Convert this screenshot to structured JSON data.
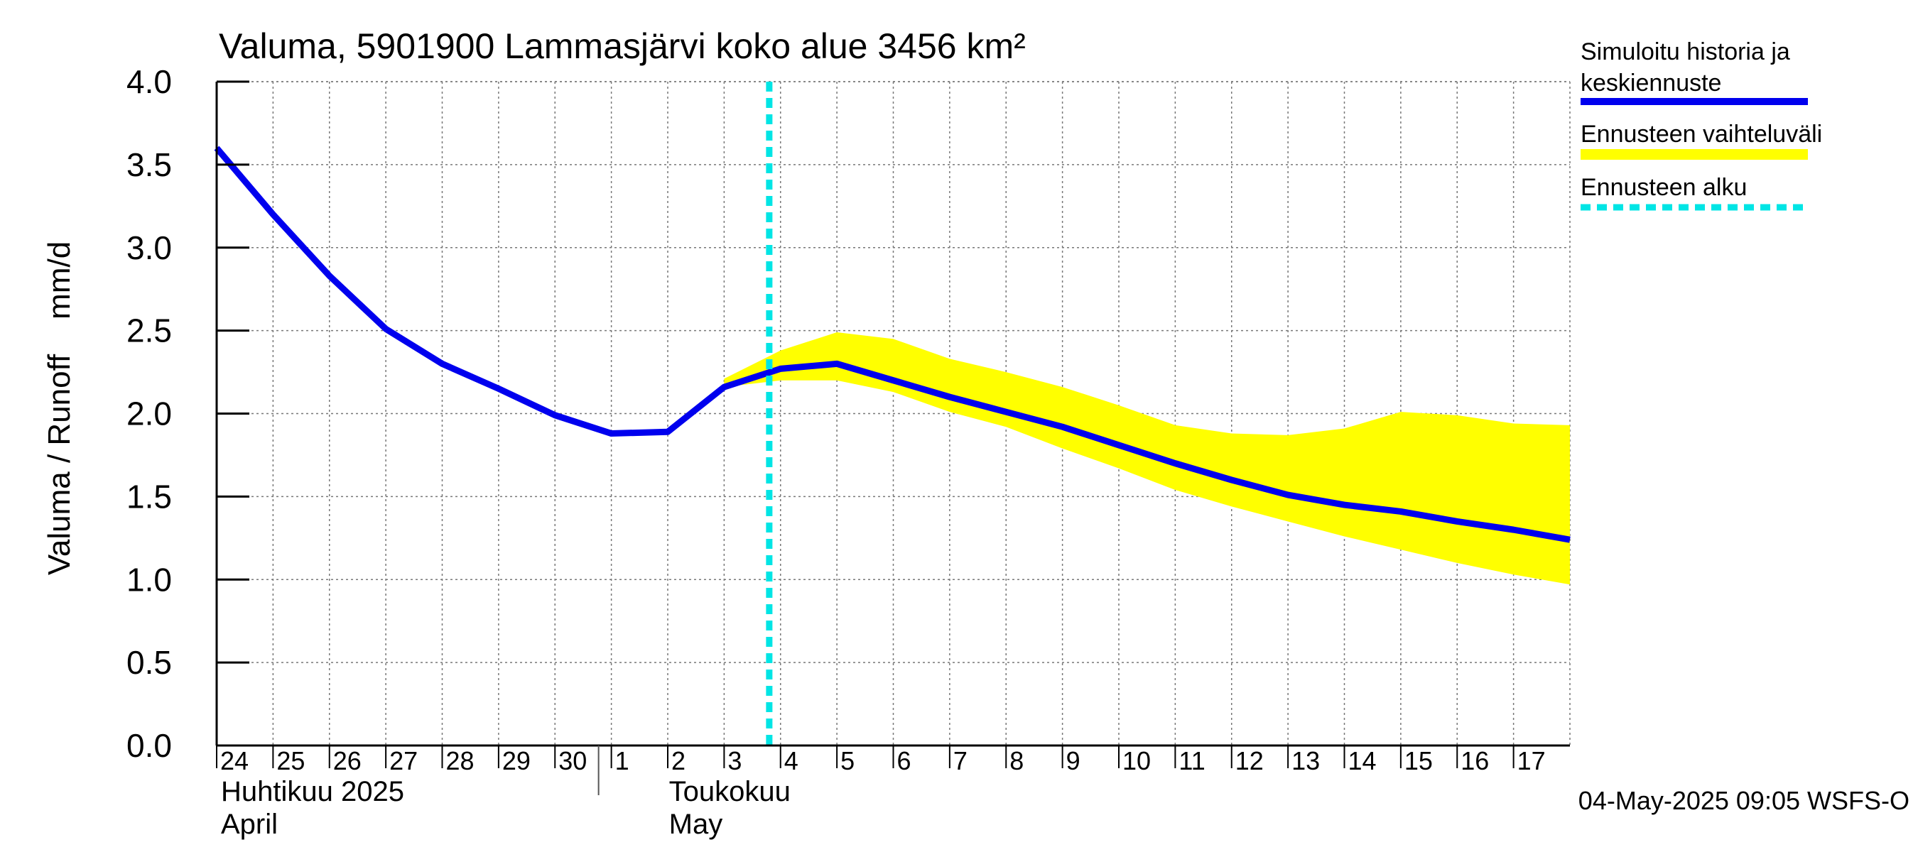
{
  "chart_data": {
    "type": "area",
    "title": "Valuma, 5901900 Lammasjärvi koko alue 3456 km²",
    "ylabel": "Valuma / Runoff    mm/d",
    "ylim": [
      0.0,
      4.0
    ],
    "y_ticks": [
      "0.0",
      "0.5",
      "1.0",
      "1.5",
      "2.0",
      "2.5",
      "3.0",
      "3.5",
      "4.0"
    ],
    "x_range": [
      "2025-04-24",
      "2025-05-18"
    ],
    "x_tick_labels": [
      {
        "date": "2025-04-24",
        "label": "24"
      },
      {
        "date": "2025-04-25",
        "label": "25"
      },
      {
        "date": "2025-04-26",
        "label": "26"
      },
      {
        "date": "2025-04-27",
        "label": "27"
      },
      {
        "date": "2025-04-28",
        "label": "28"
      },
      {
        "date": "2025-04-29",
        "label": "29"
      },
      {
        "date": "2025-04-30",
        "label": "30"
      },
      {
        "date": "2025-05-01",
        "label": "1"
      },
      {
        "date": "2025-05-02",
        "label": "2"
      },
      {
        "date": "2025-05-03",
        "label": "3"
      },
      {
        "date": "2025-05-04",
        "label": "4"
      },
      {
        "date": "2025-05-05",
        "label": "5"
      },
      {
        "date": "2025-05-06",
        "label": "6"
      },
      {
        "date": "2025-05-07",
        "label": "7"
      },
      {
        "date": "2025-05-08",
        "label": "8"
      },
      {
        "date": "2025-05-09",
        "label": "9"
      },
      {
        "date": "2025-05-10",
        "label": "10"
      },
      {
        "date": "2025-05-11",
        "label": "11"
      },
      {
        "date": "2025-05-12",
        "label": "12"
      },
      {
        "date": "2025-05-13",
        "label": "13"
      },
      {
        "date": "2025-05-14",
        "label": "14"
      },
      {
        "date": "2025-05-15",
        "label": "15"
      },
      {
        "date": "2025-05-16",
        "label": "16"
      },
      {
        "date": "2025-05-17",
        "label": "17"
      }
    ],
    "month_labels": [
      {
        "date": "2025-04-24",
        "line1": "Huhtikuu  2025",
        "line2": "April"
      },
      {
        "date": "2025-05-01",
        "line1": "Toukokuu",
        "line2": "May"
      }
    ],
    "month_boundary": "2025-05-01",
    "grid": true,
    "forecast_start": "2025-05-04",
    "series": [
      {
        "name": "Simuloitu historia ja keskiennuste",
        "color": "#0000ee",
        "points": [
          [
            "2025-04-24",
            3.6
          ],
          [
            "2025-04-25",
            3.2
          ],
          [
            "2025-04-26",
            2.83
          ],
          [
            "2025-04-27",
            2.51
          ],
          [
            "2025-04-28",
            2.3
          ],
          [
            "2025-04-29",
            2.15
          ],
          [
            "2025-04-30",
            1.99
          ],
          [
            "2025-05-01",
            1.88
          ],
          [
            "2025-05-02",
            1.89
          ],
          [
            "2025-05-03",
            2.16
          ],
          [
            "2025-05-04",
            2.27
          ],
          [
            "2025-05-05",
            2.3
          ],
          [
            "2025-05-06",
            2.2
          ],
          [
            "2025-05-07",
            2.1
          ],
          [
            "2025-05-08",
            2.01
          ],
          [
            "2025-05-09",
            1.92
          ],
          [
            "2025-05-10",
            1.81
          ],
          [
            "2025-05-11",
            1.7
          ],
          [
            "2025-05-12",
            1.6
          ],
          [
            "2025-05-13",
            1.51
          ],
          [
            "2025-05-14",
            1.45
          ],
          [
            "2025-05-15",
            1.41
          ],
          [
            "2025-05-16",
            1.35
          ],
          [
            "2025-05-17",
            1.3
          ],
          [
            "2025-05-18",
            1.24
          ]
        ]
      },
      {
        "name": "Ennusteen vaihteluväli",
        "color": "#ffff00",
        "band": [
          [
            "2025-05-03",
            2.16,
            2.21
          ],
          [
            "2025-05-04",
            2.2,
            2.38
          ],
          [
            "2025-05-05",
            2.2,
            2.49
          ],
          [
            "2025-05-06",
            2.13,
            2.45
          ],
          [
            "2025-05-07",
            2.01,
            2.33
          ],
          [
            "2025-05-08",
            1.92,
            2.25
          ],
          [
            "2025-05-09",
            1.79,
            2.16
          ],
          [
            "2025-05-10",
            1.67,
            2.05
          ],
          [
            "2025-05-11",
            1.54,
            1.93
          ],
          [
            "2025-05-12",
            1.44,
            1.88
          ],
          [
            "2025-05-13",
            1.35,
            1.87
          ],
          [
            "2025-05-14",
            1.26,
            1.91
          ],
          [
            "2025-05-15",
            1.18,
            2.01
          ],
          [
            "2025-05-16",
            1.1,
            1.99
          ],
          [
            "2025-05-17",
            1.03,
            1.94
          ],
          [
            "2025-05-18",
            0.97,
            1.93
          ]
        ]
      },
      {
        "name": "Ennusteen alku",
        "color": "#00e5e5"
      }
    ],
    "legend": {
      "position": "right",
      "entries": [
        {
          "line1": "Simuloitu historia ja",
          "line2": "keskiennuste",
          "color": "#0000ee",
          "style": "solid"
        },
        {
          "line1": "Ennusteen vaihteluväli",
          "line2": "",
          "color": "#ffff00",
          "style": "band"
        },
        {
          "line1": "Ennusteen alku",
          "line2": "",
          "color": "#00e5e5",
          "style": "dashed"
        }
      ]
    },
    "footer": "04-May-2025 09:05 WSFS-O"
  }
}
